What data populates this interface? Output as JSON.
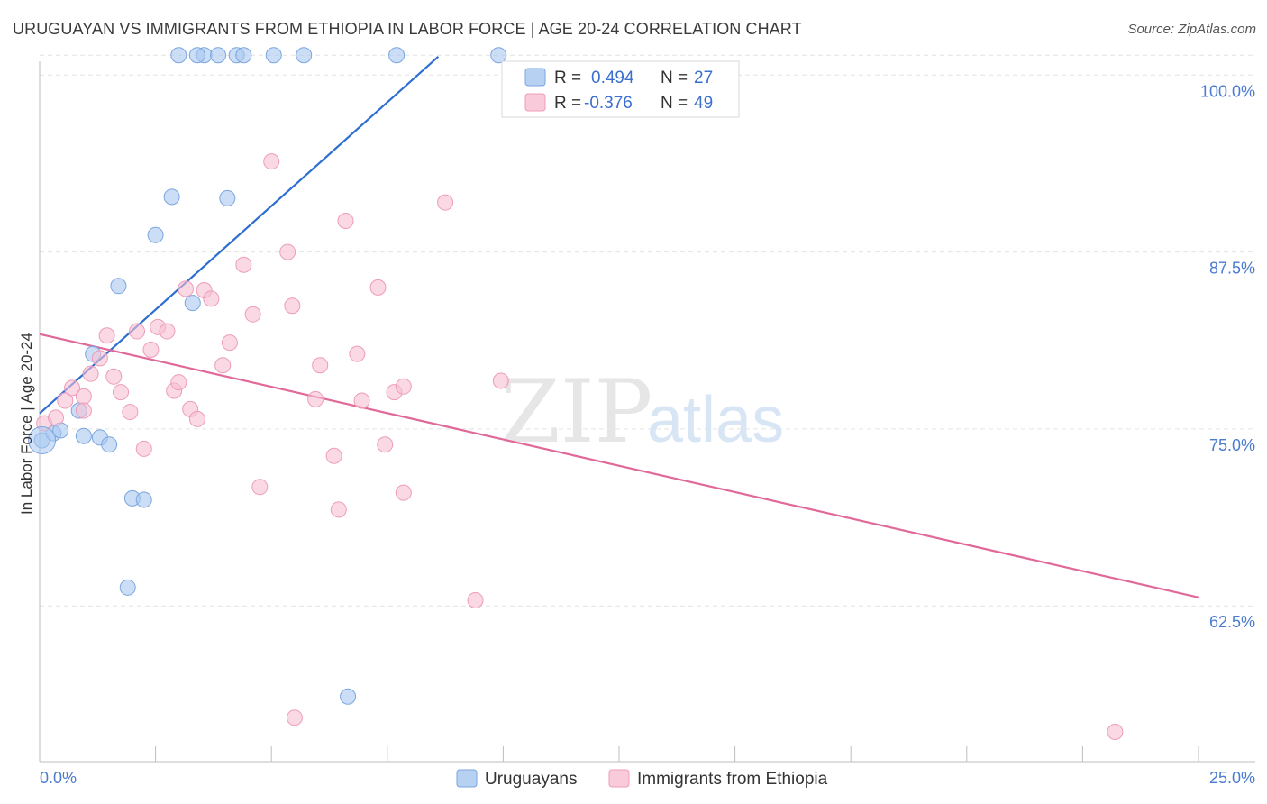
{
  "title": "URUGUAYAN VS IMMIGRANTS FROM ETHIOPIA IN LABOR FORCE | AGE 20-24 CORRELATION CHART",
  "source": "Source: ZipAtlas.com",
  "watermark": {
    "zip": "ZIP",
    "atlas": "atlas"
  },
  "chart_data": {
    "type": "scatter",
    "ylabel": "In Labor Force | Age 20-24",
    "xlim": [
      0,
      25
    ],
    "ylim": [
      51.5,
      102.5
    ],
    "x_tick_labels": {
      "min": "0.0%",
      "max": "25.0%"
    },
    "y_ticks": [
      {
        "value": 100,
        "label": "100.0%"
      },
      {
        "value": 87.5,
        "label": "87.5%"
      },
      {
        "value": 75,
        "label": "75.0%"
      },
      {
        "value": 62.5,
        "label": "62.5%"
      }
    ],
    "legend": [
      {
        "r_label": "R =",
        "r_value": "0.494",
        "n_label": "N =",
        "n_value": "27"
      },
      {
        "r_label": "R =",
        "r_value": "-0.376",
        "n_label": "N =",
        "n_value": "49"
      }
    ],
    "series": [
      {
        "name": "Uruguayans",
        "color": "#a9c8f0",
        "stroke": "#7aa6e0",
        "trend_color": "#2f6fd0",
        "trend": {
          "x1": 0.0,
          "y1": 76.1,
          "x2": 8.6,
          "y2": 101.3
        },
        "points": [
          [
            0.05,
            74.2
          ],
          [
            0.3,
            74.7
          ],
          [
            0.45,
            74.9
          ],
          [
            0.85,
            76.3
          ],
          [
            0.95,
            74.5
          ],
          [
            1.3,
            74.4
          ],
          [
            1.5,
            73.9
          ],
          [
            1.15,
            80.3
          ],
          [
            1.7,
            85.1
          ],
          [
            2.0,
            70.1
          ],
          [
            2.25,
            70.0
          ],
          [
            2.5,
            88.7
          ],
          [
            2.85,
            91.4
          ],
          [
            3.3,
            83.9
          ],
          [
            4.05,
            91.3
          ],
          [
            3.55,
            101.4
          ],
          [
            3.85,
            101.4
          ],
          [
            4.25,
            101.4
          ],
          [
            3.4,
            101.4
          ],
          [
            4.4,
            101.4
          ],
          [
            5.05,
            101.4
          ],
          [
            5.7,
            101.4
          ],
          [
            7.7,
            101.4
          ],
          [
            9.9,
            101.4
          ],
          [
            1.9,
            63.8
          ],
          [
            6.65,
            56.1
          ],
          [
            3.0,
            101.4
          ]
        ]
      },
      {
        "name": "Immigrants from Ethiopia",
        "color": "#f7c0d2",
        "stroke": "#ee9cb8",
        "trend_color": "#e0699a",
        "trend": {
          "x1": 0.0,
          "y1": 81.7,
          "x2": 25.0,
          "y2": 63.1
        },
        "points": [
          [
            0.1,
            75.4
          ],
          [
            0.35,
            75.8
          ],
          [
            0.55,
            77.0
          ],
          [
            0.7,
            77.9
          ],
          [
            0.95,
            77.3
          ],
          [
            0.95,
            76.3
          ],
          [
            1.1,
            78.9
          ],
          [
            1.3,
            80.0
          ],
          [
            1.45,
            81.6
          ],
          [
            1.6,
            78.7
          ],
          [
            1.75,
            77.6
          ],
          [
            1.95,
            76.2
          ],
          [
            2.1,
            81.9
          ],
          [
            2.25,
            73.6
          ],
          [
            2.4,
            80.6
          ],
          [
            2.55,
            82.2
          ],
          [
            2.75,
            81.9
          ],
          [
            2.9,
            77.7
          ],
          [
            3.0,
            78.3
          ],
          [
            3.15,
            84.9
          ],
          [
            3.25,
            76.4
          ],
          [
            3.4,
            75.7
          ],
          [
            3.55,
            84.8
          ],
          [
            3.7,
            84.2
          ],
          [
            3.95,
            79.5
          ],
          [
            4.1,
            81.1
          ],
          [
            4.4,
            86.6
          ],
          [
            4.6,
            83.1
          ],
          [
            4.75,
            70.9
          ],
          [
            5.0,
            93.9
          ],
          [
            5.35,
            87.5
          ],
          [
            5.45,
            83.7
          ],
          [
            5.95,
            77.1
          ],
          [
            6.05,
            79.5
          ],
          [
            6.35,
            73.1
          ],
          [
            6.45,
            69.3
          ],
          [
            6.6,
            89.7
          ],
          [
            6.85,
            80.3
          ],
          [
            6.95,
            77.0
          ],
          [
            7.3,
            85.0
          ],
          [
            7.45,
            73.9
          ],
          [
            7.65,
            77.6
          ],
          [
            7.85,
            78.0
          ],
          [
            7.85,
            70.5
          ],
          [
            8.75,
            91.0
          ],
          [
            9.4,
            62.9
          ],
          [
            9.95,
            78.4
          ],
          [
            5.5,
            54.6
          ],
          [
            23.2,
            53.6
          ]
        ]
      }
    ]
  }
}
